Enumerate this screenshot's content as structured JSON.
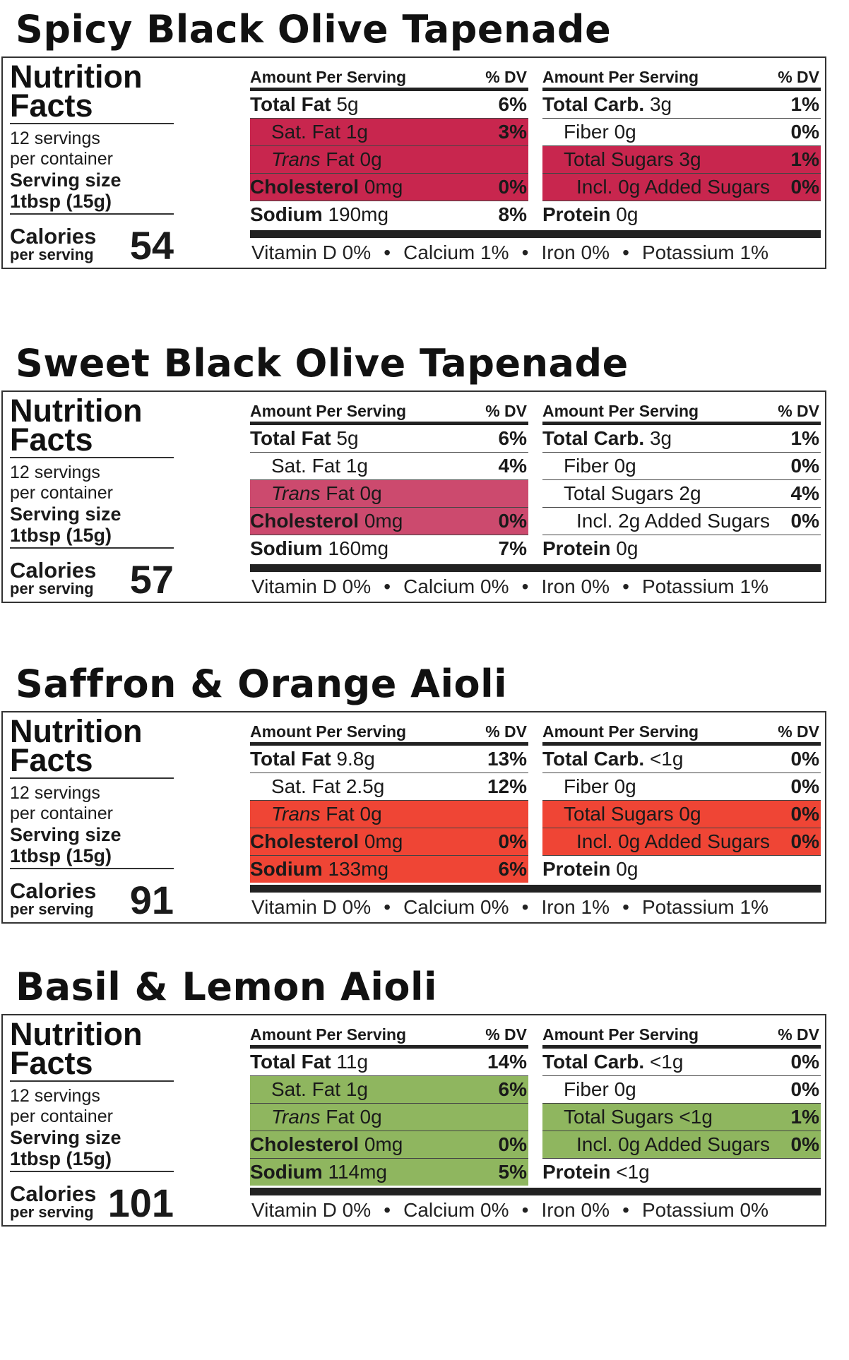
{
  "labels": {
    "nutrition_facts_line1": "Nutrition",
    "nutrition_facts_line2": "Facts",
    "servings_line1": "12 servings",
    "servings_line2": "per container",
    "serving_size_label": "Serving size",
    "serving_size_value": "1tbsp (15g)",
    "calories_label": "Calories",
    "per_serving_label": "per serving",
    "amount_per_serving": "Amount Per Serving",
    "dv_header": "% DV"
  },
  "products": [
    {
      "title": "Spicy Black Olive Tapenade",
      "calories": "54",
      "highlight_color": "#c8264e",
      "left_rows": [
        {
          "name": "Total Fat",
          "amount": "5g",
          "dv": "6%",
          "bold": true,
          "indent": 0,
          "highlight": false
        },
        {
          "name": "Sat. Fat",
          "amount": "1g",
          "dv": "3%",
          "bold": false,
          "indent": 1,
          "highlight": true
        },
        {
          "name": "Trans",
          "name_suffix": " Fat",
          "amount": "0g",
          "dv": "",
          "bold": false,
          "italic_prefix": true,
          "indent": 1,
          "highlight": true
        },
        {
          "name": "Cholesterol",
          "amount": "0mg",
          "dv": "0%",
          "bold": true,
          "indent": 0,
          "highlight": true
        },
        {
          "name": "Sodium",
          "amount": "190mg",
          "dv": "8%",
          "bold": true,
          "indent": 0,
          "highlight": false
        }
      ],
      "right_rows": [
        {
          "name": "Total Carb.",
          "amount": "3g",
          "dv": "1%",
          "bold": true,
          "indent": 0,
          "highlight": false
        },
        {
          "name": "Fiber",
          "amount": "0g",
          "dv": "0%",
          "bold": false,
          "indent": 1,
          "highlight": false
        },
        {
          "name": "Total Sugars",
          "amount": "3g",
          "dv": "1%",
          "bold": false,
          "indent": 1,
          "highlight": true
        },
        {
          "name": "Incl. 0g Added Sugars",
          "amount": "",
          "dv": "0%",
          "bold": false,
          "indent": 2,
          "highlight": true
        },
        {
          "name": "Protein",
          "amount": "0g",
          "dv": "",
          "bold": true,
          "indent": 0,
          "highlight": false
        }
      ],
      "vitamins": [
        "Vitamin D 0%",
        "Calcium 1%",
        "Iron 0%",
        "Potassium 1%"
      ]
    },
    {
      "title": "Sweet Black Olive Tapenade",
      "calories": "57",
      "highlight_color": "#cc4a6e",
      "left_rows": [
        {
          "name": "Total Fat",
          "amount": "5g",
          "dv": "6%",
          "bold": true,
          "indent": 0,
          "highlight": false
        },
        {
          "name": "Sat. Fat",
          "amount": "1g",
          "dv": "4%",
          "bold": false,
          "indent": 1,
          "highlight": false
        },
        {
          "name": "Trans",
          "name_suffix": " Fat",
          "amount": "0g",
          "dv": "",
          "bold": false,
          "italic_prefix": true,
          "indent": 1,
          "highlight": true
        },
        {
          "name": "Cholesterol",
          "amount": "0mg",
          "dv": "0%",
          "bold": true,
          "indent": 0,
          "highlight": true
        },
        {
          "name": "Sodium",
          "amount": "160mg",
          "dv": "7%",
          "bold": true,
          "indent": 0,
          "highlight": false
        }
      ],
      "right_rows": [
        {
          "name": "Total Carb.",
          "amount": "3g",
          "dv": "1%",
          "bold": true,
          "indent": 0,
          "highlight": false
        },
        {
          "name": "Fiber",
          "amount": "0g",
          "dv": "0%",
          "bold": false,
          "indent": 1,
          "highlight": false
        },
        {
          "name": "Total Sugars",
          "amount": "2g",
          "dv": "4%",
          "bold": false,
          "indent": 1,
          "highlight": false
        },
        {
          "name": "Incl. 2g Added Sugars",
          "amount": "",
          "dv": "0%",
          "bold": false,
          "indent": 2,
          "highlight": false
        },
        {
          "name": "Protein",
          "amount": "0g",
          "dv": "",
          "bold": true,
          "indent": 0,
          "highlight": false
        }
      ],
      "vitamins": [
        "Vitamin D 0%",
        "Calcium 0%",
        "Iron 0%",
        "Potassium 1%"
      ]
    },
    {
      "title": "Saffron & Orange Aioli",
      "calories": "91",
      "highlight_color": "#ef4535",
      "left_rows": [
        {
          "name": "Total Fat",
          "amount": "9.8g",
          "dv": "13%",
          "bold": true,
          "indent": 0,
          "highlight": false
        },
        {
          "name": "Sat. Fat",
          "amount": "2.5g",
          "dv": "12%",
          "bold": false,
          "indent": 1,
          "highlight": false
        },
        {
          "name": "Trans",
          "name_suffix": " Fat",
          "amount": "0g",
          "dv": "",
          "bold": false,
          "italic_prefix": true,
          "indent": 1,
          "highlight": true
        },
        {
          "name": "Cholesterol",
          "amount": "0mg",
          "dv": "0%",
          "bold": true,
          "indent": 0,
          "highlight": true
        },
        {
          "name": "Sodium",
          "amount": "133mg",
          "dv": "6%",
          "bold": true,
          "indent": 0,
          "highlight": true
        }
      ],
      "right_rows": [
        {
          "name": "Total Carb.",
          "amount": "<1g",
          "dv": "0%",
          "bold": true,
          "indent": 0,
          "highlight": false
        },
        {
          "name": "Fiber",
          "amount": "0g",
          "dv": "0%",
          "bold": false,
          "indent": 1,
          "highlight": false
        },
        {
          "name": "Total Sugars",
          "amount": "0g",
          "dv": "0%",
          "bold": false,
          "indent": 1,
          "highlight": true
        },
        {
          "name": "Incl. 0g Added Sugars",
          "amount": "",
          "dv": "0%",
          "bold": false,
          "indent": 2,
          "highlight": true
        },
        {
          "name": "Protein",
          "amount": "0g",
          "dv": "",
          "bold": true,
          "indent": 0,
          "highlight": false
        }
      ],
      "vitamins": [
        "Vitamin D 0%",
        "Calcium 0%",
        "Iron 1%",
        "Potassium 1%"
      ]
    },
    {
      "title": "Basil & Lemon Aioli",
      "calories": "101",
      "highlight_color": "#8fb65f",
      "left_rows": [
        {
          "name": "Total Fat",
          "amount": "11g",
          "dv": "14%",
          "bold": true,
          "indent": 0,
          "highlight": false
        },
        {
          "name": "Sat. Fat",
          "amount": "1g",
          "dv": "6%",
          "bold": false,
          "indent": 1,
          "highlight": true
        },
        {
          "name": "Trans",
          "name_suffix": " Fat",
          "amount": "0g",
          "dv": "",
          "bold": false,
          "italic_prefix": true,
          "indent": 1,
          "highlight": true
        },
        {
          "name": "Cholesterol",
          "amount": "0mg",
          "dv": "0%",
          "bold": true,
          "indent": 0,
          "highlight": true
        },
        {
          "name": "Sodium",
          "amount": "114mg",
          "dv": "5%",
          "bold": true,
          "indent": 0,
          "highlight": true
        }
      ],
      "right_rows": [
        {
          "name": "Total Carb.",
          "amount": "<1g",
          "dv": "0%",
          "bold": true,
          "indent": 0,
          "highlight": false
        },
        {
          "name": "Fiber",
          "amount": "0g",
          "dv": "0%",
          "bold": false,
          "indent": 1,
          "highlight": false
        },
        {
          "name": "Total Sugars",
          "amount": "<1g",
          "dv": "1%",
          "bold": false,
          "indent": 1,
          "highlight": true
        },
        {
          "name": "Incl. 0g Added Sugars",
          "amount": "",
          "dv": "0%",
          "bold": false,
          "indent": 2,
          "highlight": true
        },
        {
          "name": "Protein",
          "amount": "<1g",
          "dv": "",
          "bold": true,
          "indent": 0,
          "highlight": false
        }
      ],
      "vitamins": [
        "Vitamin D 0%",
        "Calcium 0%",
        "Iron 0%",
        "Potassium 0%"
      ]
    }
  ]
}
